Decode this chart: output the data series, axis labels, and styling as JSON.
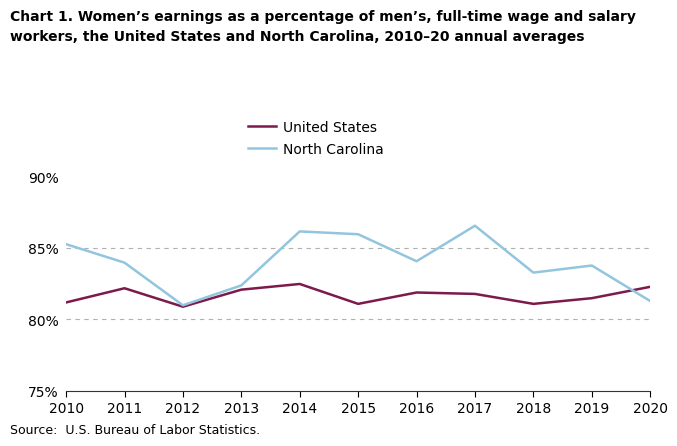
{
  "title_line1": "Chart 1. Women’s earnings as a percentage of men’s, full-time wage and salary",
  "title_line2": "workers, the United States and North Carolina, 2010–20 annual averages",
  "years": [
    2010,
    2011,
    2012,
    2013,
    2014,
    2015,
    2016,
    2017,
    2018,
    2019,
    2020
  ],
  "us_values": [
    81.2,
    82.2,
    80.9,
    82.1,
    82.5,
    81.1,
    81.9,
    81.8,
    81.1,
    81.5,
    82.3
  ],
  "nc_values": [
    85.3,
    84.0,
    81.0,
    82.4,
    86.2,
    86.0,
    84.1,
    86.6,
    83.3,
    83.8,
    81.3
  ],
  "us_color": "#7b1a4b",
  "nc_color": "#92c5de",
  "ylim": [
    75,
    91
  ],
  "yticks": [
    75,
    80,
    85,
    90
  ],
  "ytick_labels": [
    "75%",
    "80%",
    "85%",
    "90%"
  ],
  "grid_color": "#b0b0b0",
  "grid_lines": [
    80,
    85
  ],
  "source_text": "Source:  U.S. Bureau of Labor Statistics.",
  "legend_us": "United States",
  "legend_nc": "North Carolina",
  "line_width": 1.8
}
